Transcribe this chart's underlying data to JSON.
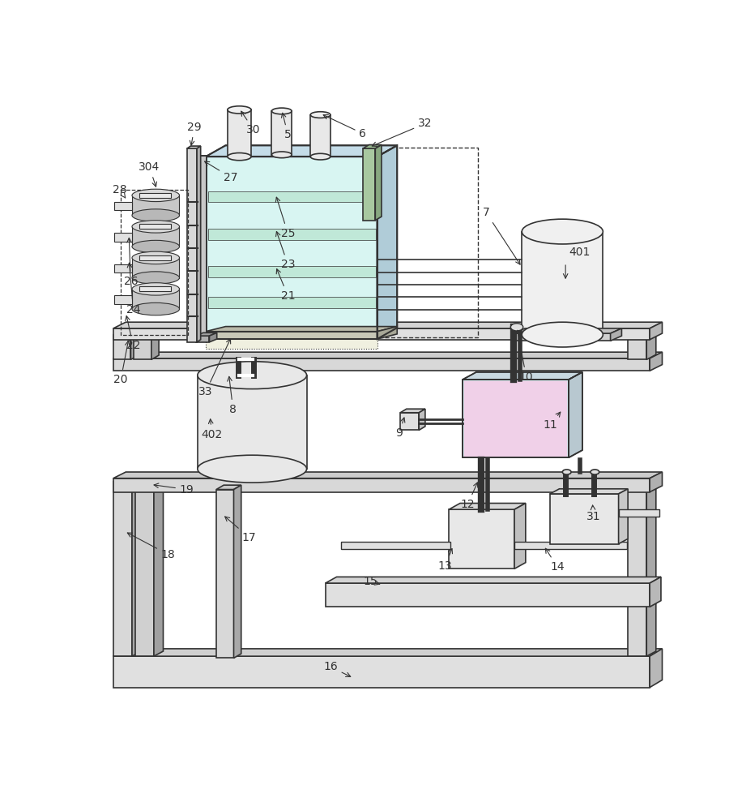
{
  "bg_color": "#ffffff",
  "lc": "#333333",
  "gray_light": "#e8e8e8",
  "gray_mid": "#d0d0d0",
  "gray_dark": "#b0b0b0",
  "blue_light": "#d8f0f8",
  "green_light": "#d8f0e0",
  "pink_light": "#f0d8e0",
  "figsize": [
    9.16,
    10.0
  ],
  "dpi": 100
}
